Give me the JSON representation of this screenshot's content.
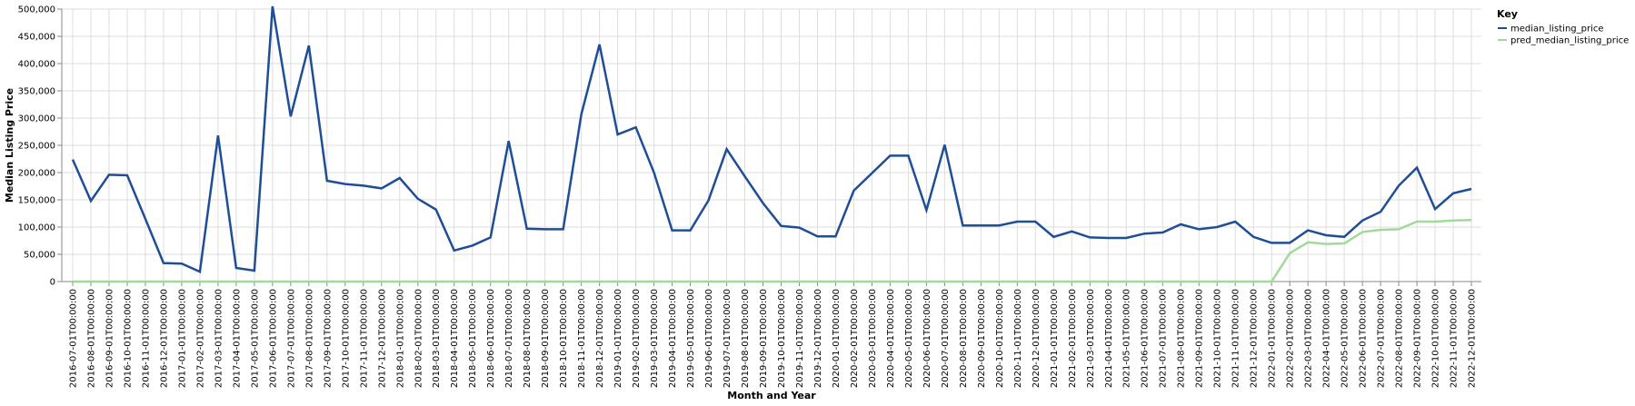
{
  "chart_data": {
    "type": "line",
    "xlabel": "Month and Year",
    "ylabel": "Median Listing Price",
    "ylim": [
      0,
      500000
    ],
    "yticks": [
      0,
      50000,
      100000,
      150000,
      200000,
      250000,
      300000,
      350000,
      400000,
      450000,
      500000
    ],
    "ytick_labels": [
      "0",
      "50,000",
      "100,000",
      "150,000",
      "200,000",
      "250,000",
      "300,000",
      "350,000",
      "400,000",
      "450,000",
      "500,000"
    ],
    "grid": true,
    "legend": {
      "title": "Key",
      "placement": "top-right"
    },
    "x": [
      "2016-07-01T00:00:00",
      "2016-08-01T00:00:00",
      "2016-09-01T00:00:00",
      "2016-10-01T00:00:00",
      "2016-11-01T00:00:00",
      "2016-12-01T00:00:00",
      "2017-01-01T00:00:00",
      "2017-02-01T00:00:00",
      "2017-03-01T00:00:00",
      "2017-04-01T00:00:00",
      "2017-05-01T00:00:00",
      "2017-06-01T00:00:00",
      "2017-07-01T00:00:00",
      "2017-08-01T00:00:00",
      "2017-09-01T00:00:00",
      "2017-10-01T00:00:00",
      "2017-11-01T00:00:00",
      "2017-12-01T00:00:00",
      "2018-01-01T00:00:00",
      "2018-02-01T00:00:00",
      "2018-03-01T00:00:00",
      "2018-04-01T00:00:00",
      "2018-05-01T00:00:00",
      "2018-06-01T00:00:00",
      "2018-07-01T00:00:00",
      "2018-08-01T00:00:00",
      "2018-09-01T00:00:00",
      "2018-10-01T00:00:00",
      "2018-11-01T00:00:00",
      "2018-12-01T00:00:00",
      "2019-01-01T00:00:00",
      "2019-02-01T00:00:00",
      "2019-03-01T00:00:00",
      "2019-04-01T00:00:00",
      "2019-05-01T00:00:00",
      "2019-06-01T00:00:00",
      "2019-07-01T00:00:00",
      "2019-08-01T00:00:00",
      "2019-09-01T00:00:00",
      "2019-10-01T00:00:00",
      "2019-11-01T00:00:00",
      "2019-12-01T00:00:00",
      "2020-01-01T00:00:00",
      "2020-02-01T00:00:00",
      "2020-03-01T00:00:00",
      "2020-04-01T00:00:00",
      "2020-05-01T00:00:00",
      "2020-06-01T00:00:00",
      "2020-07-01T00:00:00",
      "2020-08-01T00:00:00",
      "2020-09-01T00:00:00",
      "2020-10-01T00:00:00",
      "2020-11-01T00:00:00",
      "2020-12-01T00:00:00",
      "2021-01-01T00:00:00",
      "2021-02-01T00:00:00",
      "2021-03-01T00:00:00",
      "2021-04-01T00:00:00",
      "2021-05-01T00:00:00",
      "2021-06-01T00:00:00",
      "2021-07-01T00:00:00",
      "2021-08-01T00:00:00",
      "2021-09-01T00:00:00",
      "2021-10-01T00:00:00",
      "2021-11-01T00:00:00",
      "2021-12-01T00:00:00",
      "2022-01-01T00:00:00",
      "2022-02-01T00:00:00",
      "2022-03-01T00:00:00",
      "2022-04-01T00:00:00",
      "2022-05-01T00:00:00",
      "2022-06-01T00:00:00",
      "2022-07-01T00:00:00",
      "2022-08-01T00:00:00",
      "2022-09-01T00:00:00",
      "2022-10-01T00:00:00",
      "2022-11-01T00:00:00",
      "2022-12-01T00:00:00"
    ],
    "series": [
      {
        "name": "median_listing_price",
        "color": "#1f4e96",
        "values": [
          224000,
          148000,
          196000,
          195000,
          115000,
          34000,
          33000,
          18000,
          268000,
          25000,
          20000,
          505000,
          303000,
          433000,
          185000,
          179000,
          176000,
          171000,
          190000,
          152000,
          132000,
          57000,
          66000,
          81000,
          258000,
          97000,
          96000,
          96000,
          307000,
          435000,
          270000,
          283000,
          200000,
          94000,
          94000,
          149000,
          243000,
          193000,
          144000,
          102000,
          99000,
          83000,
          83000,
          167000,
          199000,
          231000,
          231000,
          131000,
          251000,
          103000,
          103000,
          103000,
          110000,
          110000,
          82000,
          92000,
          81000,
          80000,
          80000,
          88000,
          90000,
          105000,
          96000,
          100000,
          110000,
          82000,
          71000,
          71000,
          94000,
          85000,
          82000,
          112000,
          128000,
          176000,
          209000,
          133000,
          162000,
          170000
        ]
      },
      {
        "name": "pred_median_listing_price",
        "color": "#a1d99b",
        "values": [
          0,
          0,
          0,
          0,
          0,
          0,
          0,
          0,
          0,
          0,
          0,
          0,
          0,
          0,
          0,
          0,
          0,
          0,
          0,
          0,
          0,
          0,
          0,
          0,
          0,
          0,
          0,
          0,
          0,
          0,
          0,
          0,
          0,
          0,
          0,
          0,
          0,
          0,
          0,
          0,
          0,
          0,
          0,
          0,
          0,
          0,
          0,
          0,
          0,
          0,
          0,
          0,
          0,
          0,
          0,
          0,
          0,
          0,
          0,
          0,
          0,
          0,
          0,
          0,
          0,
          0,
          0,
          52000,
          72000,
          69000,
          70000,
          91000,
          95000,
          96000,
          110000,
          110000,
          112000,
          113000
        ]
      }
    ]
  }
}
